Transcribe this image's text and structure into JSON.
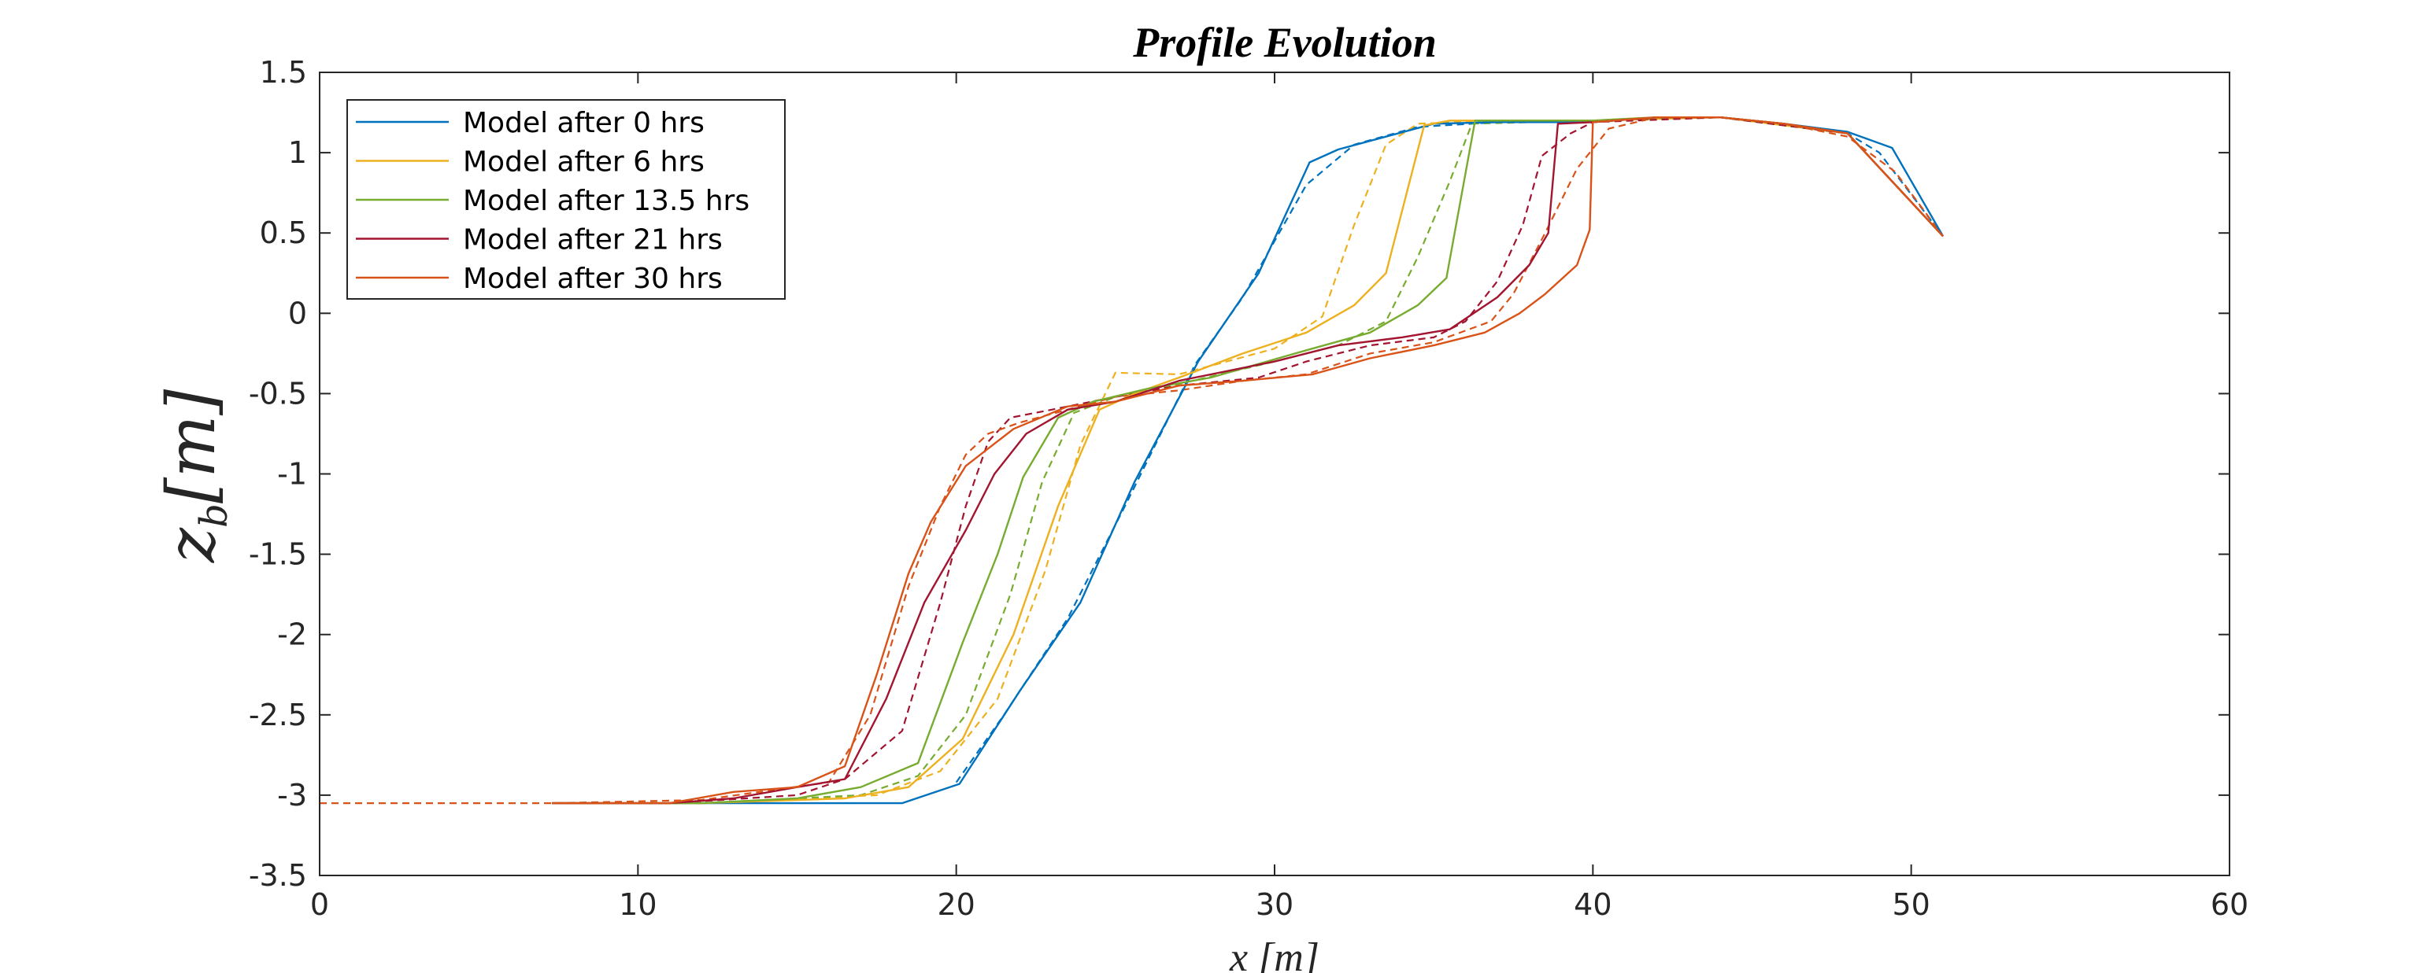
{
  "chart_data": {
    "type": "line",
    "title": "Profile Evolution",
    "xlabel": "x [m]",
    "ylabel": {
      "base": "z",
      "sub": "b",
      "unit": "[m]"
    },
    "xlim": [
      0,
      60
    ],
    "ylim": [
      -3.5,
      1.5
    ],
    "xticks": [
      0,
      10,
      20,
      30,
      40,
      50,
      60
    ],
    "yticks": [
      -3.5,
      -3,
      -2.5,
      -2,
      -1.5,
      -1,
      -0.5,
      0,
      0.5,
      1,
      1.5
    ],
    "xtick_labels": [
      "0",
      "10",
      "20",
      "30",
      "40",
      "50",
      "60"
    ],
    "ytick_labels": [
      "-3.5",
      "-3",
      "-2.5",
      "-2",
      "-1.5",
      "-1",
      "-0.5",
      "0",
      "0.5",
      "1",
      "1.5"
    ],
    "grid": false,
    "legend_position": "top-left",
    "series": [
      {
        "name": "Model after  0 hrs",
        "color": "#0072BD",
        "model": [
          [
            7.3,
            -3.05
          ],
          [
            10,
            -3.05
          ],
          [
            14,
            -3.05
          ],
          [
            18.3,
            -3.05
          ],
          [
            20.1,
            -2.93
          ],
          [
            22,
            -2.35
          ],
          [
            23.9,
            -1.8
          ],
          [
            25.6,
            -1.05
          ],
          [
            27.6,
            -0.3
          ],
          [
            29.5,
            0.25
          ],
          [
            31.1,
            0.94
          ],
          [
            32,
            1.02
          ],
          [
            33.5,
            1.1
          ],
          [
            35,
            1.18
          ],
          [
            37,
            1.19
          ],
          [
            40,
            1.19
          ],
          [
            42,
            1.22
          ],
          [
            44,
            1.22
          ],
          [
            46,
            1.18
          ],
          [
            48,
            1.13
          ],
          [
            49.4,
            1.03
          ],
          [
            51,
            0.48
          ]
        ],
        "measured": [
          [
            20,
            -2.92
          ],
          [
            21.5,
            -2.5
          ],
          [
            23.5,
            -1.9
          ],
          [
            25.3,
            -1.2
          ],
          [
            27.5,
            -0.32
          ],
          [
            29,
            0.1
          ],
          [
            31,
            0.8
          ],
          [
            32.5,
            1.05
          ],
          [
            34.5,
            1.16
          ],
          [
            37,
            1.19
          ],
          [
            40,
            1.19
          ],
          [
            42,
            1.22
          ],
          [
            44,
            1.22
          ],
          [
            46,
            1.18
          ],
          [
            48,
            1.12
          ],
          [
            49,
            1.0
          ],
          [
            51,
            0.48
          ]
        ]
      },
      {
        "name": "Model after  6 hrs",
        "color": "#EDB120",
        "model": [
          [
            7.3,
            -3.05
          ],
          [
            12,
            -3.05
          ],
          [
            16.5,
            -3.02
          ],
          [
            18.5,
            -2.95
          ],
          [
            20.2,
            -2.65
          ],
          [
            21.8,
            -2.0
          ],
          [
            23.2,
            -1.2
          ],
          [
            24.5,
            -0.6
          ],
          [
            25.6,
            -0.5
          ],
          [
            27,
            -0.4
          ],
          [
            29,
            -0.25
          ],
          [
            31,
            -0.12
          ],
          [
            32.5,
            0.05
          ],
          [
            33.5,
            0.25
          ],
          [
            34.7,
            1.17
          ],
          [
            35.5,
            1.2
          ],
          [
            40,
            1.2
          ],
          [
            42,
            1.22
          ],
          [
            44,
            1.22
          ],
          [
            46,
            1.18
          ],
          [
            48,
            1.12
          ],
          [
            51,
            0.48
          ]
        ],
        "measured": [
          [
            7.3,
            -3.05
          ],
          [
            12,
            -3.05
          ],
          [
            17.5,
            -3.0
          ],
          [
            19.5,
            -2.85
          ],
          [
            21.3,
            -2.4
          ],
          [
            22.8,
            -1.6
          ],
          [
            23.9,
            -0.82
          ],
          [
            25,
            -0.37
          ],
          [
            27,
            -0.38
          ],
          [
            30,
            -0.22
          ],
          [
            31.5,
            -0.02
          ],
          [
            32.5,
            0.55
          ],
          [
            33.5,
            1.05
          ],
          [
            34.5,
            1.18
          ],
          [
            37,
            1.2
          ],
          [
            40,
            1.2
          ],
          [
            44,
            1.22
          ],
          [
            48,
            1.12
          ],
          [
            51,
            0.48
          ]
        ]
      },
      {
        "name": "Model after  13.5 hrs",
        "color": "#77AC30",
        "model": [
          [
            7.3,
            -3.05
          ],
          [
            12,
            -3.05
          ],
          [
            15,
            -3.02
          ],
          [
            17,
            -2.95
          ],
          [
            18.8,
            -2.8
          ],
          [
            20.2,
            -2.05
          ],
          [
            21.3,
            -1.5
          ],
          [
            22.1,
            -1.02
          ],
          [
            23.2,
            -0.65
          ],
          [
            24.3,
            -0.55
          ],
          [
            26,
            -0.47
          ],
          [
            28,
            -0.4
          ],
          [
            31,
            -0.23
          ],
          [
            33,
            -0.12
          ],
          [
            34.5,
            0.05
          ],
          [
            35.4,
            0.22
          ],
          [
            36.3,
            1.2
          ],
          [
            40,
            1.2
          ],
          [
            42,
            1.22
          ],
          [
            44,
            1.22
          ],
          [
            46,
            1.18
          ],
          [
            48,
            1.12
          ],
          [
            51,
            0.48
          ]
        ],
        "measured": [
          [
            7.3,
            -3.05
          ],
          [
            12,
            -3.05
          ],
          [
            17,
            -3.0
          ],
          [
            18.8,
            -2.88
          ],
          [
            20.3,
            -2.5
          ],
          [
            21.7,
            -1.75
          ],
          [
            22.7,
            -1.05
          ],
          [
            23.7,
            -0.62
          ],
          [
            25,
            -0.52
          ],
          [
            27,
            -0.44
          ],
          [
            30,
            -0.3
          ],
          [
            32,
            -0.2
          ],
          [
            33.5,
            -0.05
          ],
          [
            34.5,
            0.35
          ],
          [
            35.5,
            0.82
          ],
          [
            36.2,
            1.18
          ],
          [
            40,
            1.2
          ],
          [
            44,
            1.22
          ],
          [
            48,
            1.12
          ],
          [
            51,
            0.48
          ]
        ]
      },
      {
        "name": "Model after  21 hrs",
        "color": "#A2142F",
        "model": [
          [
            7.3,
            -3.05
          ],
          [
            11,
            -3.05
          ],
          [
            13,
            -3.02
          ],
          [
            15,
            -2.95
          ],
          [
            16.5,
            -2.9
          ],
          [
            17.8,
            -2.4
          ],
          [
            19,
            -1.8
          ],
          [
            20.3,
            -1.35
          ],
          [
            21.2,
            -1.0
          ],
          [
            22.2,
            -0.75
          ],
          [
            23.5,
            -0.6
          ],
          [
            25,
            -0.55
          ],
          [
            27,
            -0.42
          ],
          [
            30,
            -0.3
          ],
          [
            32,
            -0.2
          ],
          [
            34,
            -0.15
          ],
          [
            35.5,
            -0.1
          ],
          [
            37,
            0.1
          ],
          [
            38,
            0.3
          ],
          [
            38.6,
            0.5
          ],
          [
            38.9,
            1.18
          ],
          [
            40,
            1.19
          ],
          [
            42,
            1.22
          ],
          [
            44,
            1.22
          ],
          [
            46,
            1.18
          ],
          [
            48,
            1.12
          ],
          [
            51,
            0.48
          ]
        ],
        "measured": [
          [
            7.3,
            -3.05
          ],
          [
            11,
            -3.05
          ],
          [
            15,
            -3.0
          ],
          [
            16.5,
            -2.9
          ],
          [
            18.3,
            -2.6
          ],
          [
            19.5,
            -1.8
          ],
          [
            20.3,
            -1.2
          ],
          [
            21,
            -0.8
          ],
          [
            21.7,
            -0.65
          ],
          [
            23,
            -0.6
          ],
          [
            25,
            -0.52
          ],
          [
            27,
            -0.45
          ],
          [
            29.5,
            -0.4
          ],
          [
            31,
            -0.3
          ],
          [
            33,
            -0.2
          ],
          [
            35,
            -0.15
          ],
          [
            36,
            -0.05
          ],
          [
            37,
            0.2
          ],
          [
            37.8,
            0.55
          ],
          [
            38.4,
            0.98
          ],
          [
            39.3,
            1.12
          ],
          [
            40,
            1.19
          ],
          [
            44,
            1.22
          ],
          [
            48,
            1.12
          ],
          [
            51,
            0.48
          ]
        ]
      },
      {
        "name": "Model after  30 hrs",
        "color": "#D95319",
        "model": [
          [
            7.3,
            -3.05
          ],
          [
            11,
            -3.05
          ],
          [
            13,
            -2.98
          ],
          [
            15,
            -2.95
          ],
          [
            16.5,
            -2.82
          ],
          [
            17.5,
            -2.25
          ],
          [
            18.5,
            -1.62
          ],
          [
            19.2,
            -1.3
          ],
          [
            20.3,
            -0.95
          ],
          [
            21.8,
            -0.72
          ],
          [
            23.5,
            -0.58
          ],
          [
            25,
            -0.55
          ],
          [
            27,
            -0.45
          ],
          [
            29,
            -0.42
          ],
          [
            31.2,
            -0.38
          ],
          [
            33,
            -0.28
          ],
          [
            35,
            -0.2
          ],
          [
            36.6,
            -0.12
          ],
          [
            37.7,
            0.0
          ],
          [
            38.5,
            0.12
          ],
          [
            39.5,
            0.3
          ],
          [
            39.9,
            0.52
          ],
          [
            40,
            1.19
          ],
          [
            42,
            1.22
          ],
          [
            44,
            1.22
          ],
          [
            46,
            1.18
          ],
          [
            48,
            1.12
          ],
          [
            51,
            0.48
          ]
        ],
        "measured": [
          [
            0,
            -3.05
          ],
          [
            7.3,
            -3.05
          ],
          [
            12,
            -3.03
          ],
          [
            16,
            -2.92
          ],
          [
            17.3,
            -2.5
          ],
          [
            18.5,
            -1.7
          ],
          [
            19.5,
            -1.2
          ],
          [
            20.3,
            -0.88
          ],
          [
            21,
            -0.75
          ],
          [
            22,
            -0.68
          ],
          [
            23.5,
            -0.6
          ],
          [
            25,
            -0.52
          ],
          [
            27,
            -0.48
          ],
          [
            29,
            -0.42
          ],
          [
            31,
            -0.38
          ],
          [
            33,
            -0.25
          ],
          [
            35,
            -0.18
          ],
          [
            36.8,
            -0.05
          ],
          [
            37.5,
            0.12
          ],
          [
            38.5,
            0.5
          ],
          [
            39.5,
            0.9
          ],
          [
            40.5,
            1.15
          ],
          [
            42,
            1.22
          ],
          [
            44,
            1.22
          ],
          [
            46,
            1.18
          ],
          [
            48,
            1.1
          ],
          [
            49.5,
            0.88
          ],
          [
            51,
            0.48
          ]
        ]
      }
    ]
  }
}
